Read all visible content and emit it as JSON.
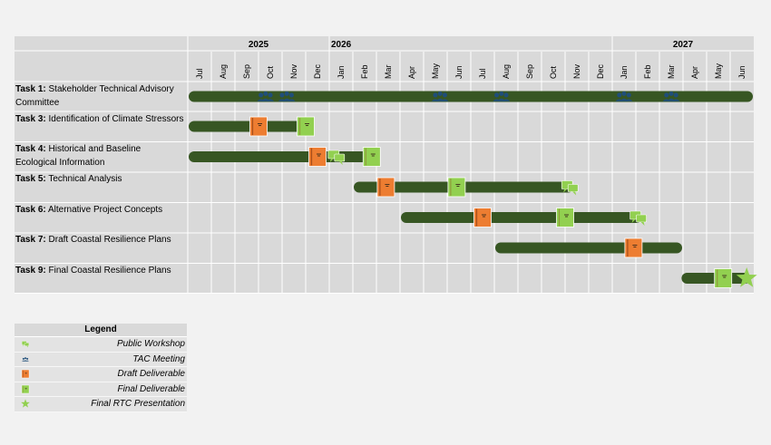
{
  "chart_data": {
    "type": "gantt",
    "years": [
      {
        "label": "2025",
        "start_month": 0,
        "span": 6
      },
      {
        "label": "2026",
        "start_month": 6,
        "span": 12
      },
      {
        "label": "2027",
        "start_month": 18,
        "span": 6
      }
    ],
    "months": [
      "Jul",
      "Aug",
      "Sep",
      "Oct",
      "Nov",
      "Dec",
      "Jan",
      "Feb",
      "Mar",
      "Apr",
      "May",
      "Jun",
      "Jul",
      "Aug",
      "Sep",
      "Oct",
      "Nov",
      "Dec",
      "Jan",
      "Feb",
      "Mar",
      "Apr",
      "May",
      "Jun"
    ],
    "tasks": [
      {
        "num": "Task 1:",
        "name": "Stakeholder Technical Advisory Committee",
        "start": "Jul 2025",
        "end": "Jun 2027",
        "bar": [
          0,
          24
        ],
        "milestones": [
          {
            "type": "tac",
            "at": 3.3
          },
          {
            "type": "tac",
            "at": 4.2
          },
          {
            "type": "tac",
            "at": 10.7
          },
          {
            "type": "tac",
            "at": 13.3
          },
          {
            "type": "tac",
            "at": 18.5
          },
          {
            "type": "tac",
            "at": 20.5
          }
        ]
      },
      {
        "num": "Task 3:",
        "name": "Identification of Climate Stressors",
        "start": "Jul 2025",
        "end": "Dec 2025",
        "bar": [
          0,
          5.4
        ],
        "milestones": [
          {
            "type": "draft",
            "at": 3.0
          },
          {
            "type": "final",
            "at": 5.0
          }
        ]
      },
      {
        "num": "Task 4:",
        "name": "Historical and Baseline Ecological Information",
        "start": "Jul 2025",
        "end": "Feb 2026",
        "bar": [
          0,
          7.8
        ],
        "milestones": [
          {
            "type": "draft",
            "at": 5.5
          },
          {
            "type": "workshop",
            "at": 6.3
          },
          {
            "type": "final",
            "at": 7.8
          }
        ]
      },
      {
        "num": "Task 5:",
        "name": "Technical Analysis",
        "start": "Jan 2026",
        "end": "Oct 2026",
        "bar": [
          7.0,
          16.4
        ],
        "milestones": [
          {
            "type": "draft",
            "at": 8.4
          },
          {
            "type": "final",
            "at": 11.4
          },
          {
            "type": "workshop",
            "at": 16.2
          }
        ]
      },
      {
        "num": "Task 6:",
        "name": "Alternative Project Concepts",
        "start": "Apr 2026",
        "end": "Jan 2027",
        "bar": [
          9.0,
          19.3
        ],
        "milestones": [
          {
            "type": "draft",
            "at": 12.5
          },
          {
            "type": "final",
            "at": 16.0
          },
          {
            "type": "workshop",
            "at": 19.1
          }
        ]
      },
      {
        "num": "Task 7:",
        "name": "Draft Coastal Resilience Plans",
        "start": "Aug 2026",
        "end": "Mar 2027",
        "bar": [
          13.0,
          21.0
        ],
        "milestones": [
          {
            "type": "draft",
            "at": 18.9
          }
        ]
      },
      {
        "num": "Task 9:",
        "name": "Final Coastal Resilience Plans",
        "start": "Mar 2027",
        "end": "Jun 2027",
        "bar": [
          20.9,
          23.9
        ],
        "milestones": [
          {
            "type": "final",
            "at": 22.7
          },
          {
            "type": "star",
            "at": 23.7
          }
        ]
      }
    ]
  },
  "legend": {
    "title": "Legend",
    "items": [
      {
        "type": "workshop",
        "label": "Public Workshop"
      },
      {
        "type": "tac",
        "label": "TAC Meeting"
      },
      {
        "type": "draft",
        "label": "Draft Deliverable"
      },
      {
        "type": "final",
        "label": "Final Deliverable"
      },
      {
        "type": "star",
        "label": "Final RTC Presentation"
      }
    ]
  },
  "colors": {
    "bar": "#375623",
    "tac": "#1f4e79",
    "draft": "#ed7d31",
    "final": "#92d050",
    "workshop": "#92d050",
    "grid_bg": "#d9d9d9",
    "grid_line": "#ffffff"
  }
}
